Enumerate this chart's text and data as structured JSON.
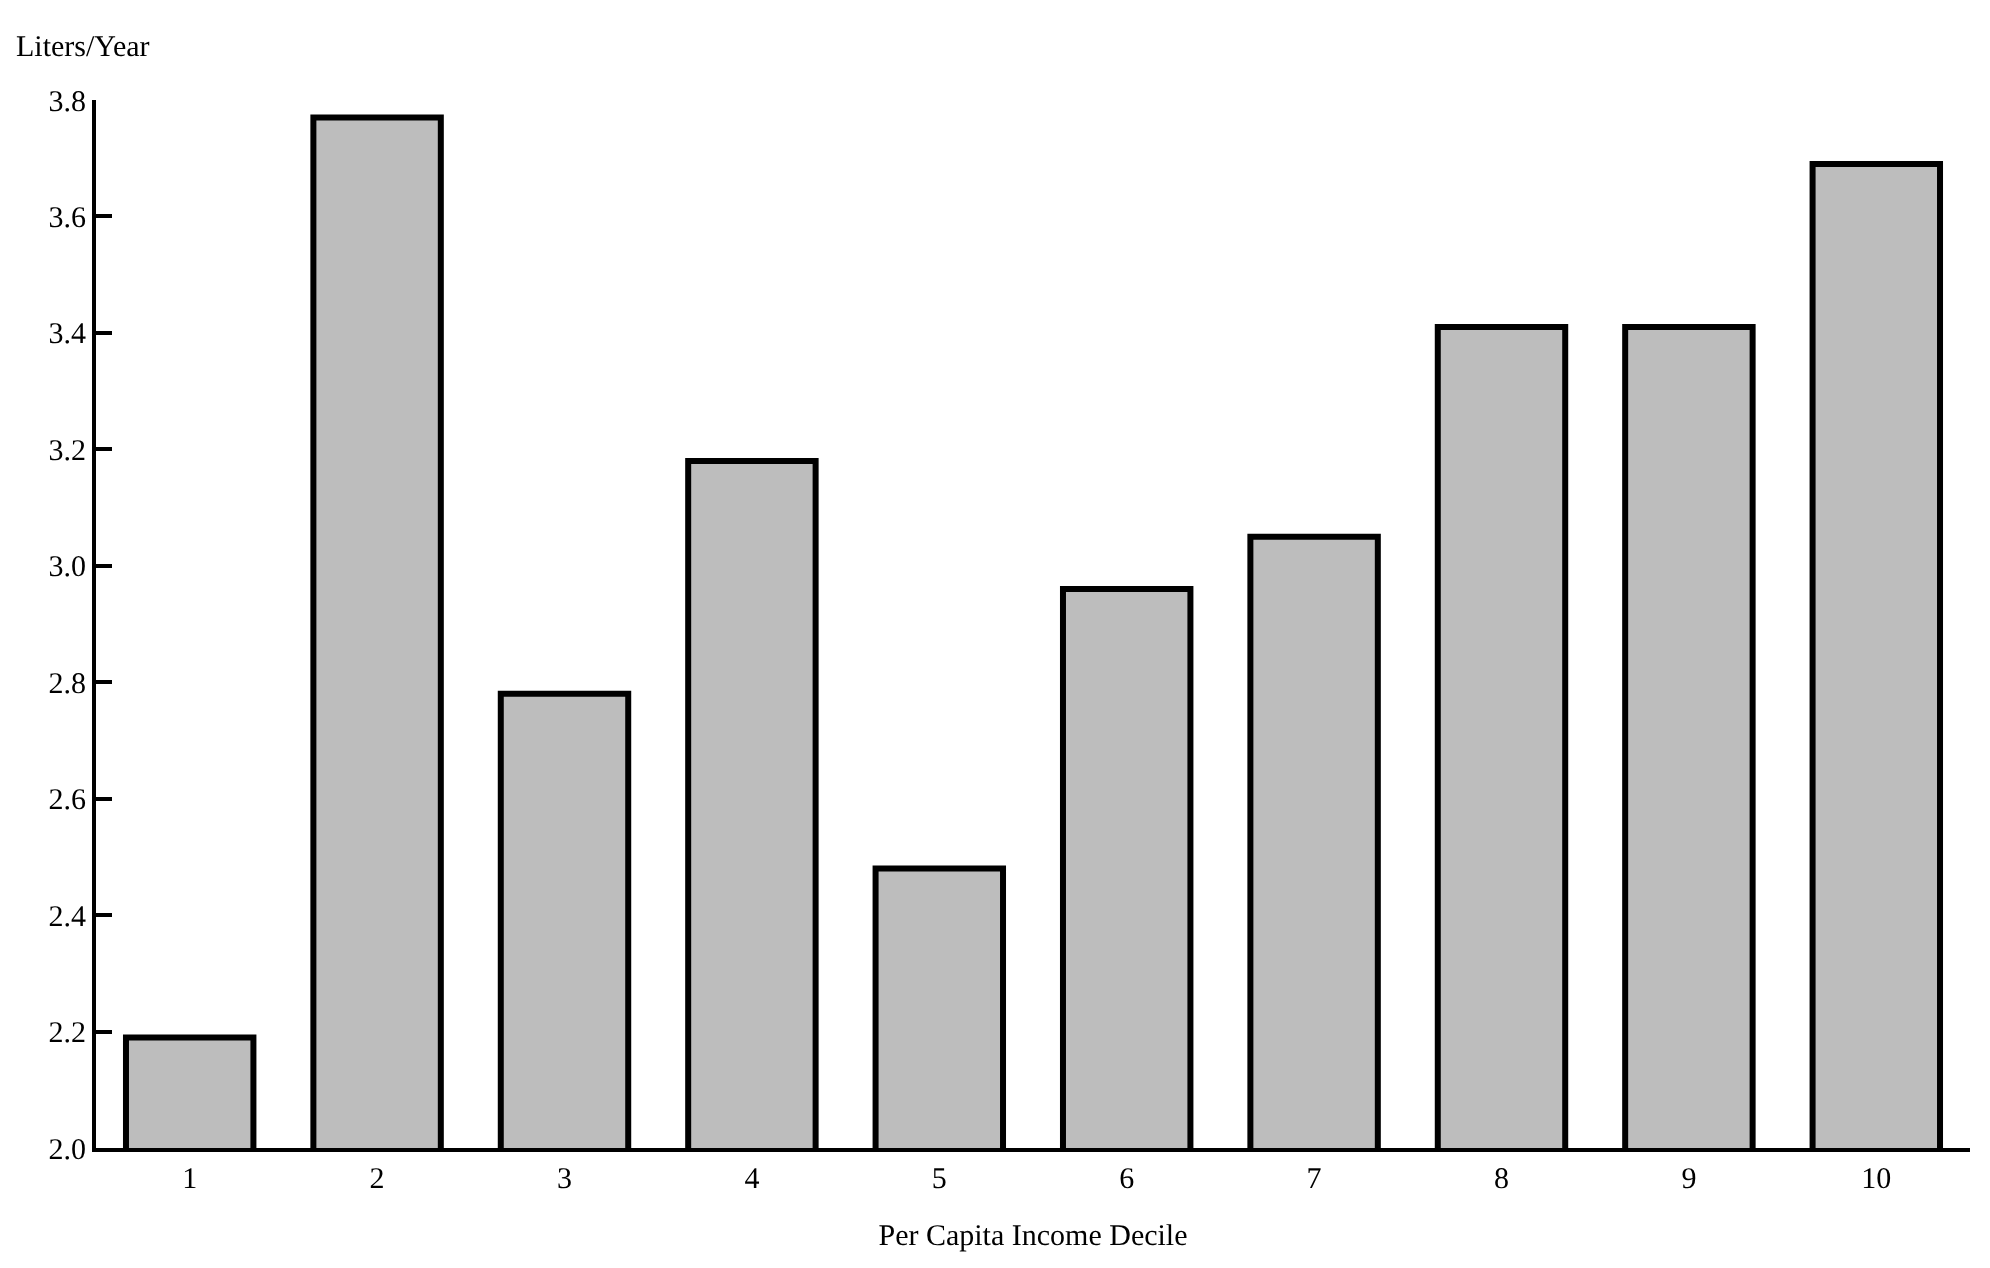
{
  "chart_data": {
    "type": "bar",
    "xlabel": "Per Capita Income Decile",
    "ylabel": "Liters/Year",
    "categories": [
      "1",
      "2",
      "3",
      "4",
      "5",
      "6",
      "7",
      "8",
      "9",
      "10"
    ],
    "values": [
      2.19,
      3.77,
      2.78,
      3.18,
      2.48,
      2.96,
      3.05,
      3.41,
      3.41,
      3.69
    ],
    "color": "#bdbdbd",
    "ylim": [
      2.0,
      3.8
    ],
    "yticks": [
      {
        "value": 2,
        "label": "2.0"
      },
      2.2,
      2.4,
      2.6,
      2.8,
      {
        "value": 3,
        "label": "3.0"
      },
      3.2,
      3.4,
      3.6,
      3.8
    ]
  }
}
